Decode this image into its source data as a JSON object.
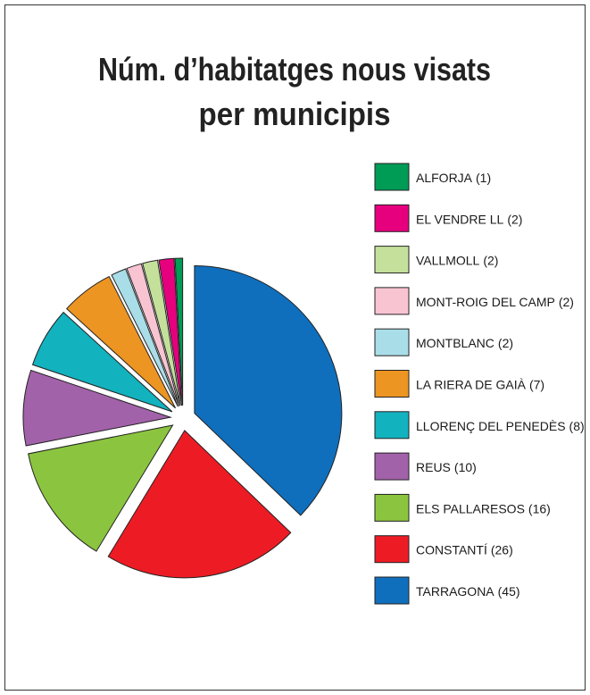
{
  "chart_data": {
    "type": "pie",
    "title": "Núm. d’habitatges nous visats",
    "subtitle": "per municipis",
    "categories": [
      "ALFORJA",
      "EL VENDRE LL",
      "VALLMOLL",
      "MONT-ROIG DEL CAMP",
      "MONTBLANC",
      "LA RIERA DE GAIÀ",
      "LLORENÇ DEL PENEDÈS",
      "REUS",
      "ELS PALLARESOS",
      "CONSTANTÍ",
      "TARRAGONA"
    ],
    "values": [
      1,
      2,
      2,
      2,
      2,
      7,
      8,
      10,
      16,
      26,
      45
    ],
    "value_labels": [
      "(1)",
      "(2)",
      "(2)",
      "(2)",
      "(2)",
      "(7)",
      "(8)",
      "(10)",
      "(16)",
      "(26)",
      "(45)"
    ],
    "colors": [
      "#009b55",
      "#e6007e",
      "#c5e09b",
      "#f9c4d2",
      "#a9dde8",
      "#ec9523",
      "#12b2be",
      "#a262a9",
      "#8bc53f",
      "#ed1c24",
      "#0f6fbd"
    ],
    "legend": "right"
  }
}
